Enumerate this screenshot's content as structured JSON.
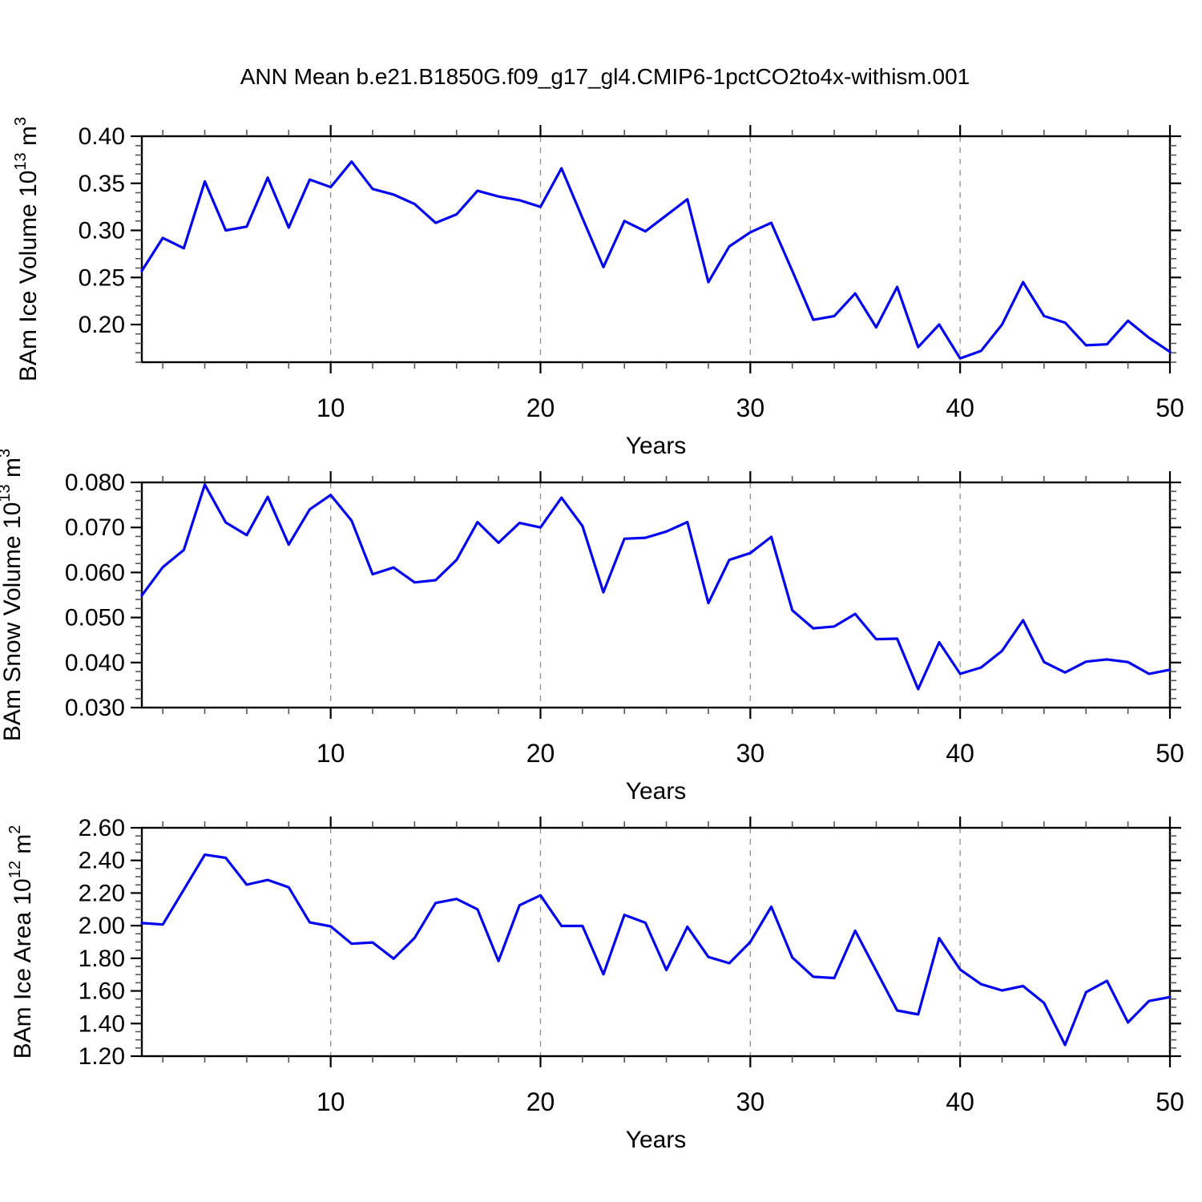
{
  "title": "ANN Mean b.e21.B1850G.f09_g17_gl4.CMIP6-1pctCO2to4x-withism.001",
  "line_color": "#0202ee",
  "grid_color": "#909090",
  "chart_data": [
    {
      "id": "bam-ice-volume",
      "type": "line",
      "xlabel": "Years",
      "ylabel": {
        "text": "BAm Ice Volume 10",
        "exp": "13",
        "unit": " m",
        "unit_exp": "3"
      },
      "x_start": 1,
      "x_end": 50,
      "x_major_ticks": [
        10,
        20,
        30,
        40,
        50
      ],
      "x_minor_step": 2,
      "grid_x": [
        10,
        20,
        30,
        40
      ],
      "y_range": [
        0.16,
        0.4
      ],
      "y_major": 0.05,
      "y_minor": 0.01,
      "y_decimals": 2,
      "values": [
        0.257,
        0.292,
        0.281,
        0.352,
        0.3,
        0.304,
        0.356,
        0.303,
        0.354,
        0.346,
        0.373,
        0.344,
        0.338,
        0.328,
        0.308,
        0.317,
        0.342,
        0.336,
        0.332,
        0.325,
        0.366,
        0.313,
        0.261,
        0.31,
        0.299,
        0.316,
        0.333,
        0.245,
        0.283,
        0.298,
        0.308,
        0.257,
        0.205,
        0.209,
        0.233,
        0.197,
        0.24,
        0.176,
        0.2,
        0.164,
        0.172,
        0.2,
        0.245,
        0.209,
        0.202,
        0.178,
        0.179,
        0.204,
        0.186,
        0.171
      ]
    },
    {
      "id": "bam-snow-volume",
      "type": "line",
      "xlabel": "Years",
      "ylabel": {
        "text": "BAm Snow Volume 10",
        "exp": "13",
        "unit": " m",
        "unit_exp": "3"
      },
      "x_start": 1,
      "x_end": 50,
      "x_major_ticks": [
        10,
        20,
        30,
        40,
        50
      ],
      "x_minor_step": 2,
      "grid_x": [
        10,
        20,
        30,
        40
      ],
      "y_range": [
        0.03,
        0.08
      ],
      "y_major": 0.01,
      "y_minor": 0.002,
      "y_decimals": 3,
      "values": [
        0.0549,
        0.0612,
        0.065,
        0.0795,
        0.0711,
        0.0683,
        0.0768,
        0.0662,
        0.074,
        0.0772,
        0.0715,
        0.0596,
        0.0611,
        0.0578,
        0.0583,
        0.0628,
        0.0712,
        0.0666,
        0.071,
        0.07,
        0.0766,
        0.0703,
        0.0556,
        0.0675,
        0.0677,
        0.0691,
        0.0712,
        0.0532,
        0.0628,
        0.0643,
        0.0679,
        0.0516,
        0.0476,
        0.048,
        0.0508,
        0.0452,
        0.0453,
        0.0341,
        0.0445,
        0.0375,
        0.0389,
        0.0426,
        0.0494,
        0.0401,
        0.0378,
        0.0402,
        0.0407,
        0.0401,
        0.0375,
        0.0384
      ]
    },
    {
      "id": "bam-ice-area",
      "type": "line",
      "xlabel": "Years",
      "ylabel": {
        "text": "BAm Ice Area 10",
        "exp": "12",
        "unit": " m",
        "unit_exp": "2"
      },
      "x_start": 1,
      "x_end": 50,
      "x_major_ticks": [
        10,
        20,
        30,
        40,
        50
      ],
      "x_minor_step": 2,
      "grid_x": [
        10,
        20,
        30,
        40
      ],
      "y_range": [
        1.2,
        2.6
      ],
      "y_major": 0.2,
      "y_minor": 0.05,
      "y_decimals": 2,
      "values": [
        2.016,
        2.007,
        2.221,
        2.435,
        2.416,
        2.251,
        2.28,
        2.235,
        2.02,
        1.996,
        1.889,
        1.897,
        1.798,
        1.925,
        2.139,
        2.164,
        2.1,
        1.783,
        2.125,
        2.186,
        1.998,
        1.998,
        1.702,
        2.066,
        2.018,
        1.728,
        1.993,
        1.808,
        1.77,
        1.9,
        2.116,
        1.805,
        1.687,
        1.679,
        1.969,
        1.724,
        1.48,
        1.456,
        1.923,
        1.731,
        1.641,
        1.603,
        1.63,
        1.526,
        1.269,
        1.592,
        1.662,
        1.407,
        1.538,
        1.562
      ]
    }
  ]
}
